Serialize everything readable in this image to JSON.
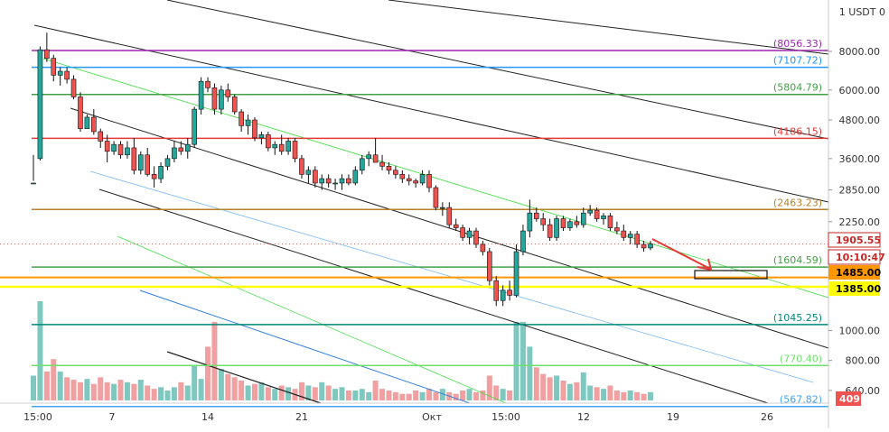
{
  "chart_data": {
    "type": "candlestick",
    "scale": "log",
    "grid": false,
    "price_axis": {
      "currency_label": "1 USDT 0",
      "ticks": [
        "8000.00",
        "6000.00",
        "4800.00",
        "3600.00",
        "2850.00",
        "2250.00",
        "1000.00",
        "800.00",
        "640.00"
      ],
      "tick_values": [
        8000,
        6000,
        4800,
        3600,
        2850,
        2250,
        1000,
        800,
        640
      ]
    },
    "time_axis": {
      "ticks": [
        "15:00",
        "7",
        "14",
        "21",
        "Окт",
        "15:00",
        "12",
        "19",
        "26"
      ]
    },
    "levels": [
      {
        "label": "(8056.33)",
        "value": 8056.33,
        "color": "#9c27b0"
      },
      {
        "label": "(7107.72)",
        "value": 7107.72,
        "color": "#2196f3"
      },
      {
        "label": "(5804.79)",
        "value": 5804.79,
        "color": "#43a047"
      },
      {
        "label": "(4186.15)",
        "value": 4186.15,
        "color": "#e53935"
      },
      {
        "label": "(2463.23)",
        "value": 2463.23,
        "color": "#b7822a"
      },
      {
        "label": "(1604.59)",
        "value": 1604.59,
        "color": "#43a047"
      },
      {
        "label": "(1045.25)",
        "value": 1045.25,
        "color": "#00897b"
      },
      {
        "label": "(770.40)",
        "value": 770.4,
        "color": "#6ee06e"
      },
      {
        "label": "(567.82)",
        "value": 567.82,
        "color": "#42a5f5"
      }
    ],
    "price_badges": [
      {
        "label": "1905.55",
        "value": 1905.55,
        "bg": "#ffffff",
        "fg": "#c62828",
        "border": "#c62828"
      },
      {
        "label": "10:10:47",
        "bg": "#ffffff",
        "fg": "#c62828",
        "border": "#c62828"
      },
      {
        "label": "1485.00",
        "value": 1485,
        "bg": "#ff9800",
        "fg": "#000000"
      },
      {
        "label": "1385.00",
        "value": 1385,
        "bg": "#ffff00",
        "fg": "#000000"
      },
      {
        "label": "409",
        "bg": "#ef5350",
        "fg": "#ffffff"
      }
    ],
    "current_price": 1905.55,
    "candles": [
      [
        3000,
        3700,
        3050,
        3000
      ],
      [
        3600,
        8300,
        3550,
        8100
      ],
      [
        8100,
        9200,
        7400,
        7600
      ],
      [
        7600,
        7800,
        6400,
        6700
      ],
      [
        6700,
        7100,
        6200,
        6900
      ],
      [
        6900,
        7100,
        6300,
        6500
      ],
      [
        6500,
        6700,
        5600,
        5700
      ],
      [
        5700,
        5900,
        4400,
        4500
      ],
      [
        4500,
        5000,
        4500,
        4900
      ],
      [
        4900,
        5200,
        4300,
        4400
      ],
      [
        4400,
        4500,
        3900,
        4100
      ],
      [
        4100,
        4300,
        3500,
        3800
      ],
      [
        3800,
        4100,
        3700,
        4000
      ],
      [
        4000,
        4100,
        3600,
        3700
      ],
      [
        3700,
        4100,
        3600,
        3900
      ],
      [
        3900,
        4200,
        3200,
        3300
      ],
      [
        3300,
        3800,
        3200,
        3700
      ],
      [
        3700,
        3900,
        3150,
        3200
      ],
      [
        3200,
        3400,
        2900,
        3100
      ],
      [
        3100,
        3500,
        3000,
        3400
      ],
      [
        3400,
        3700,
        3300,
        3600
      ],
      [
        3600,
        4100,
        3500,
        3900
      ],
      [
        3900,
        4100,
        3700,
        3800
      ],
      [
        3800,
        4200,
        3600,
        4000
      ],
      [
        4000,
        5300,
        3900,
        5200
      ],
      [
        5200,
        6600,
        5000,
        6400
      ],
      [
        6400,
        6600,
        5900,
        6100
      ],
      [
        6100,
        6300,
        5000,
        5200
      ],
      [
        5200,
        6200,
        5000,
        6000
      ],
      [
        6000,
        6300,
        5500,
        5700
      ],
      [
        5700,
        5800,
        5000,
        5100
      ],
      [
        5100,
        5200,
        4400,
        4600
      ],
      [
        4600,
        5000,
        4300,
        4800
      ],
      [
        4800,
        4900,
        4100,
        4200
      ],
      [
        4200,
        4400,
        4000,
        4300
      ],
      [
        4300,
        4400,
        3800,
        3900
      ],
      [
        3900,
        4100,
        3700,
        4000
      ],
      [
        4000,
        4300,
        3700,
        3800
      ],
      [
        3800,
        4200,
        3700,
        4100
      ],
      [
        4100,
        4200,
        3500,
        3600
      ],
      [
        3600,
        3700,
        3100,
        3200
      ],
      [
        3200,
        3400,
        3000,
        3300
      ],
      [
        3300,
        3400,
        2900,
        3000
      ],
      [
        3000,
        3200,
        2850,
        3100
      ],
      [
        3100,
        3200,
        2900,
        3000
      ],
      [
        3000,
        3100,
        2850,
        3000
      ],
      [
        3000,
        3200,
        2850,
        3100
      ],
      [
        3100,
        3200,
        2950,
        3000
      ],
      [
        3000,
        3400,
        2950,
        3300
      ],
      [
        3300,
        3700,
        3200,
        3600
      ],
      [
        3600,
        3800,
        3400,
        3700
      ],
      [
        3700,
        4200,
        3500,
        3500
      ],
      [
        3500,
        3700,
        3300,
        3400
      ],
      [
        3400,
        3500,
        3200,
        3300
      ],
      [
        3300,
        3400,
        3100,
        3200
      ],
      [
        3200,
        3300,
        3000,
        3100
      ],
      [
        3100,
        3200,
        2950,
        3050
      ],
      [
        3050,
        3100,
        2900,
        3000
      ],
      [
        3000,
        3300,
        2950,
        3200
      ],
      [
        3200,
        3300,
        2800,
        2900
      ],
      [
        2900,
        2950,
        2450,
        2500
      ],
      [
        2500,
        2600,
        2350,
        2500
      ],
      [
        2500,
        2600,
        2150,
        2200
      ],
      [
        2200,
        2300,
        2100,
        2150
      ],
      [
        2150,
        2200,
        1950,
        2000
      ],
      [
        2000,
        2150,
        1900,
        2100
      ],
      [
        2100,
        2150,
        1850,
        1900
      ],
      [
        1900,
        1950,
        1750,
        1800
      ],
      [
        1800,
        1850,
        1400,
        1450
      ],
      [
        1450,
        1500,
        1200,
        1250
      ],
      [
        1250,
        1400,
        1200,
        1350
      ],
      [
        1350,
        1450,
        1250,
        1300
      ],
      [
        1300,
        1900,
        1280,
        1800
      ],
      [
        1800,
        2200,
        1750,
        2100
      ],
      [
        2100,
        2650,
        2000,
        2400
      ],
      [
        2400,
        2500,
        2250,
        2300
      ],
      [
        2300,
        2400,
        2100,
        2200
      ],
      [
        2200,
        2300,
        1950,
        2000
      ],
      [
        2000,
        2350,
        1950,
        2300
      ],
      [
        2300,
        2350,
        2100,
        2150
      ],
      [
        2150,
        2300,
        2100,
        2250
      ],
      [
        2250,
        2350,
        2150,
        2200
      ],
      [
        2200,
        2500,
        2150,
        2400
      ],
      [
        2400,
        2550,
        2350,
        2450
      ],
      [
        2450,
        2500,
        2250,
        2300
      ],
      [
        2300,
        2400,
        2200,
        2350
      ],
      [
        2350,
        2400,
        2100,
        2150
      ],
      [
        2150,
        2250,
        2050,
        2100
      ],
      [
        2100,
        2200,
        1950,
        2000
      ],
      [
        2000,
        2100,
        1900,
        2050
      ],
      [
        2050,
        2100,
        1850,
        1900
      ],
      [
        1900,
        1950,
        1800,
        1850
      ],
      [
        1850,
        1950,
        1820,
        1905
      ]
    ],
    "volumes": [
      30,
      120,
      35,
      50,
      35,
      28,
      25,
      22,
      26,
      20,
      28,
      22,
      20,
      25,
      22,
      20,
      25,
      18,
      14,
      16,
      12,
      16,
      22,
      18,
      42,
      26,
      65,
      95,
      38,
      32,
      28,
      24,
      18,
      20,
      22,
      16,
      14,
      18,
      16,
      14,
      22,
      18,
      16,
      22,
      18,
      14,
      16,
      12,
      12,
      14,
      10,
      24,
      14,
      12,
      10,
      8,
      8,
      12,
      10,
      14,
      10,
      14,
      10,
      8,
      12,
      14,
      10,
      12,
      30,
      18,
      14,
      12,
      95,
      95,
      65,
      40,
      32,
      28,
      30,
      24,
      20,
      22,
      34,
      18,
      16,
      14,
      18,
      12,
      10,
      12,
      10,
      8,
      10
    ]
  }
}
